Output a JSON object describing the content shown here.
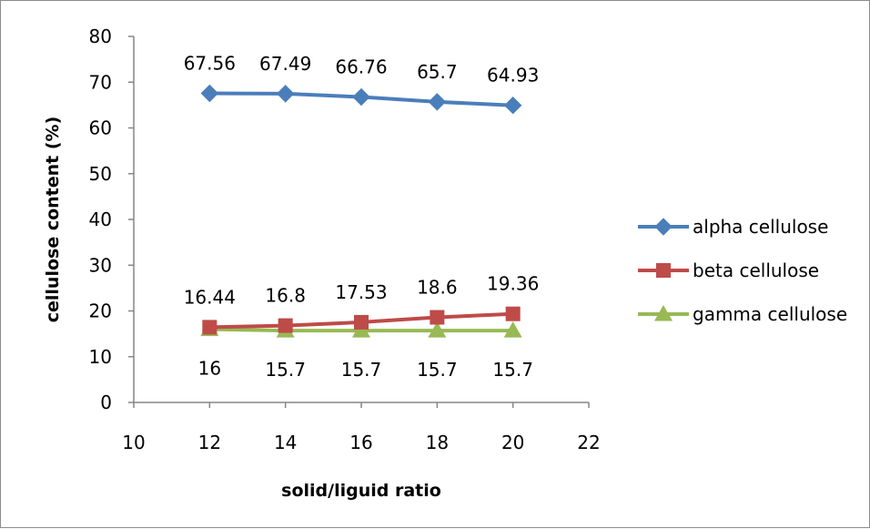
{
  "chart_data": {
    "type": "line",
    "xlabel": "solid/liguid ratio",
    "ylabel": "cellulose content (%)",
    "xlim": [
      10,
      22
    ],
    "ylim": [
      0,
      80
    ],
    "x_ticks": [
      10,
      12,
      14,
      16,
      18,
      20,
      22
    ],
    "y_ticks": [
      0,
      10,
      20,
      30,
      40,
      50,
      60,
      70,
      80
    ],
    "grid": false,
    "legend_position": "right",
    "x": [
      12,
      14,
      16,
      18,
      20
    ],
    "series": [
      {
        "name": "alpha cellulose",
        "values": [
          67.56,
          67.49,
          66.76,
          65.7,
          64.93
        ],
        "labels": [
          "67.56",
          "67.49",
          "66.76",
          "65.7",
          "64.93"
        ],
        "color": "#4a7ebb",
        "marker": "diamond",
        "label_position": "above"
      },
      {
        "name": "beta cellulose",
        "values": [
          16.44,
          16.8,
          17.53,
          18.6,
          19.36
        ],
        "labels": [
          "16.44",
          "16.8",
          "17.53",
          "18.6",
          "19.36"
        ],
        "color": "#be4b48",
        "marker": "square",
        "label_position": "above"
      },
      {
        "name": "gamma cellulose",
        "values": [
          16,
          15.7,
          15.7,
          15.7,
          15.7
        ],
        "labels": [
          "16",
          "15.7",
          "15.7",
          "15.7",
          "15.7"
        ],
        "color": "#98b954",
        "marker": "triangle",
        "label_position": "below"
      }
    ]
  }
}
